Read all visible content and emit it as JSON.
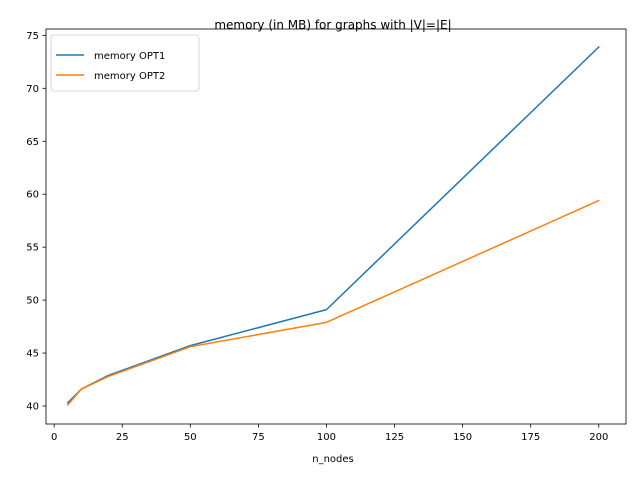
{
  "chart_data": {
    "type": "line",
    "title": "memory (in MB) for graphs with |V|=|E|",
    "xlabel": "n_nodes",
    "ylabel": "",
    "xlim": [
      -3,
      210
    ],
    "ylim": [
      38.3,
      75.6
    ],
    "xticks": [
      0,
      25,
      50,
      75,
      100,
      125,
      150,
      175,
      200
    ],
    "yticks": [
      40,
      45,
      50,
      55,
      60,
      65,
      70,
      75
    ],
    "grid": false,
    "legend_position": "top-left",
    "series": [
      {
        "name": "memory OPT1",
        "color": "#1f77b4",
        "x": [
          5,
          10,
          20,
          50,
          100,
          200
        ],
        "y": [
          40.3,
          41.6,
          42.9,
          45.7,
          49.1,
          73.9
        ]
      },
      {
        "name": "memory OPT2",
        "color": "#ff7f0e",
        "x": [
          5,
          10,
          20,
          50,
          100,
          200
        ],
        "y": [
          40.1,
          41.6,
          42.8,
          45.6,
          47.9,
          59.4
        ]
      }
    ]
  }
}
